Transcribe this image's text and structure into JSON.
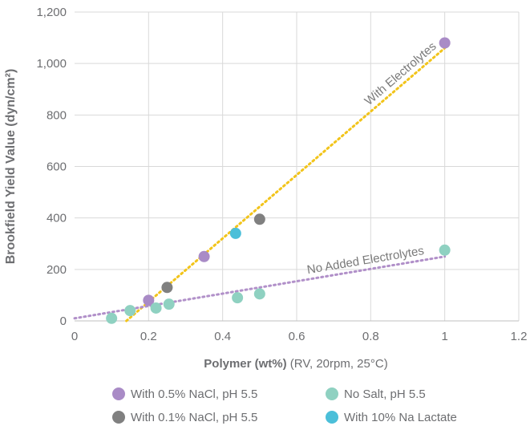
{
  "chart_data": {
    "type": "scatter",
    "ylabel": "Brookfield Yield Value (dyn/cm²)",
    "xlabel_bold": "Polymer (wt%)",
    "xlabel_rest": " (RV, 20rpm, 25°C)",
    "xlim": [
      0,
      1.2
    ],
    "ylim": [
      0,
      1200
    ],
    "x_ticks": [
      {
        "value": 0,
        "label": "0"
      },
      {
        "value": 0.2,
        "label": "0.2"
      },
      {
        "value": 0.4,
        "label": "0.4"
      },
      {
        "value": 0.6,
        "label": "0.6"
      },
      {
        "value": 0.8,
        "label": "0.8"
      },
      {
        "value": 1,
        "label": "1"
      },
      {
        "value": 1.2,
        "label": "1.2"
      }
    ],
    "y_ticks": [
      {
        "value": 0,
        "label": "0"
      },
      {
        "value": 200,
        "label": "200"
      },
      {
        "value": 400,
        "label": "400"
      },
      {
        "value": 600,
        "label": "600"
      },
      {
        "value": 800,
        "label": "800"
      },
      {
        "value": 1000,
        "label": "1,000"
      },
      {
        "value": 1200,
        "label": "1,200"
      }
    ],
    "grid": true,
    "series": [
      {
        "name": "With 0.5% NaCl, pH 5.5",
        "color": "#a98bc6",
        "points": [
          [
            0.2,
            80
          ],
          [
            0.35,
            250
          ],
          [
            1.0,
            1080
          ]
        ]
      },
      {
        "name": "No Salt, pH 5.5",
        "color": "#8fd1c1",
        "points": [
          [
            0.1,
            10
          ],
          [
            0.15,
            40
          ],
          [
            0.22,
            50
          ],
          [
            0.255,
            65
          ],
          [
            0.44,
            90
          ],
          [
            0.5,
            105
          ],
          [
            1.0,
            275
          ]
        ]
      },
      {
        "name": "With 0.1% NaCl, pH 5.5",
        "color": "#808080",
        "points": [
          [
            0.25,
            130
          ],
          [
            0.5,
            395
          ]
        ]
      },
      {
        "name": "With 10% Na Lactate",
        "color": "#4bbfd9",
        "points": [
          [
            0.435,
            340
          ]
        ]
      }
    ],
    "trendlines": [
      {
        "label": "With Electrolytes",
        "color": "#f2c41a",
        "from": [
          0.14,
          0
        ],
        "to": [
          1.0,
          1060
        ]
      },
      {
        "label": "No Added Electrolytes",
        "color": "#b190c9",
        "from": [
          0.0,
          10
        ],
        "to": [
          1.0,
          250
        ]
      }
    ],
    "legend_position": "bottom"
  }
}
